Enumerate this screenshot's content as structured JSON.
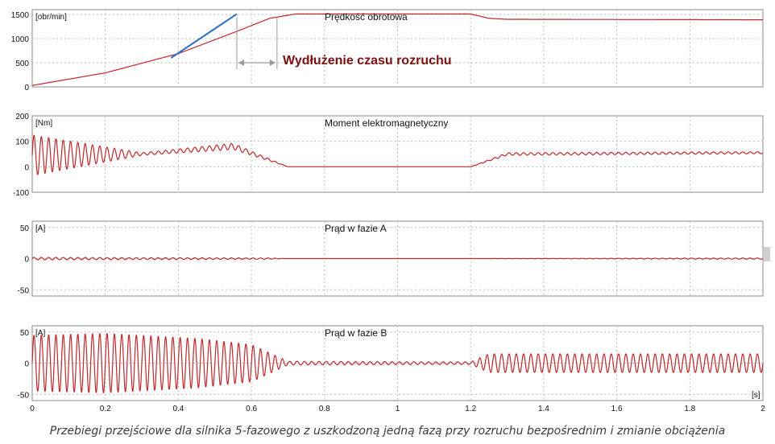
{
  "caption": "Przebiegi przejściowe dla  silnika 5-fazowego z uszkodzoną jedną fazą przy rozruchu bezpośrednim i zmianie obciążenia",
  "annotation": {
    "text": "Wydłużenie czasu rozruchu",
    "color": "#7a1010",
    "t_start": 0.56,
    "t_end": 0.67
  },
  "x_axis": {
    "range": [
      0,
      2
    ],
    "ticks": [
      "0",
      "0.2",
      "0.4",
      "0.6",
      "0.8",
      "1",
      "1.2",
      "1.4",
      "1.6",
      "1.8",
      "2"
    ],
    "unit_label": "[s]"
  },
  "colors": {
    "trace": "#c0282b",
    "grid": "#bcbcbc",
    "frame": "#8a8a8a",
    "tangent": "#2b6fc7",
    "bracket": "#9a9a9a"
  },
  "chart_data": [
    {
      "type": "line",
      "title": "Prędkość obrotowa",
      "unit_label": "[obr/min]",
      "ylim": [
        0,
        1600
      ],
      "yticks": [
        "0",
        "500",
        "1000",
        "1500"
      ],
      "grid": true,
      "x": [
        0,
        0.2,
        0.4,
        0.56,
        0.65,
        0.72,
        1.2,
        1.25,
        1.3,
        2.0
      ],
      "values": [
        30,
        290,
        690,
        1150,
        1420,
        1510,
        1510,
        1420,
        1400,
        1390
      ]
    },
    {
      "type": "line",
      "title": "Moment elektromagnetyczny",
      "unit_label": "[Nm]",
      "ylim": [
        -100,
        200
      ],
      "yticks": [
        "-100",
        "0",
        "100",
        "200"
      ],
      "grid": true,
      "x": [
        0,
        0.3,
        0.55,
        0.7,
        1.2,
        1.3,
        2.0
      ],
      "mean": [
        45,
        50,
        80,
        0,
        0,
        50,
        55
      ],
      "oscillation_amplitude": [
        80,
        5,
        12,
        0,
        0,
        5,
        4
      ]
    },
    {
      "type": "line",
      "title": "Prąd w fazie A",
      "unit_label": "[A]",
      "ylim": [
        -60,
        60
      ],
      "yticks": [
        "-50",
        "0",
        "50"
      ],
      "grid": true,
      "x": [
        0,
        0.65,
        0.7,
        1.2,
        2.0
      ],
      "oscillation_amplitude": [
        2,
        1,
        0,
        0,
        1
      ]
    },
    {
      "type": "line",
      "title": "Prąd w fazie B",
      "unit_label": "[A]",
      "ylim": [
        -60,
        60
      ],
      "yticks": [
        "-50",
        "0",
        "50"
      ],
      "grid": true,
      "x": [
        0,
        0.2,
        0.45,
        0.6,
        0.7,
        1.2,
        1.25,
        2.0
      ],
      "oscillation_amplitude": [
        45,
        48,
        40,
        30,
        3,
        2,
        15,
        15
      ]
    }
  ]
}
